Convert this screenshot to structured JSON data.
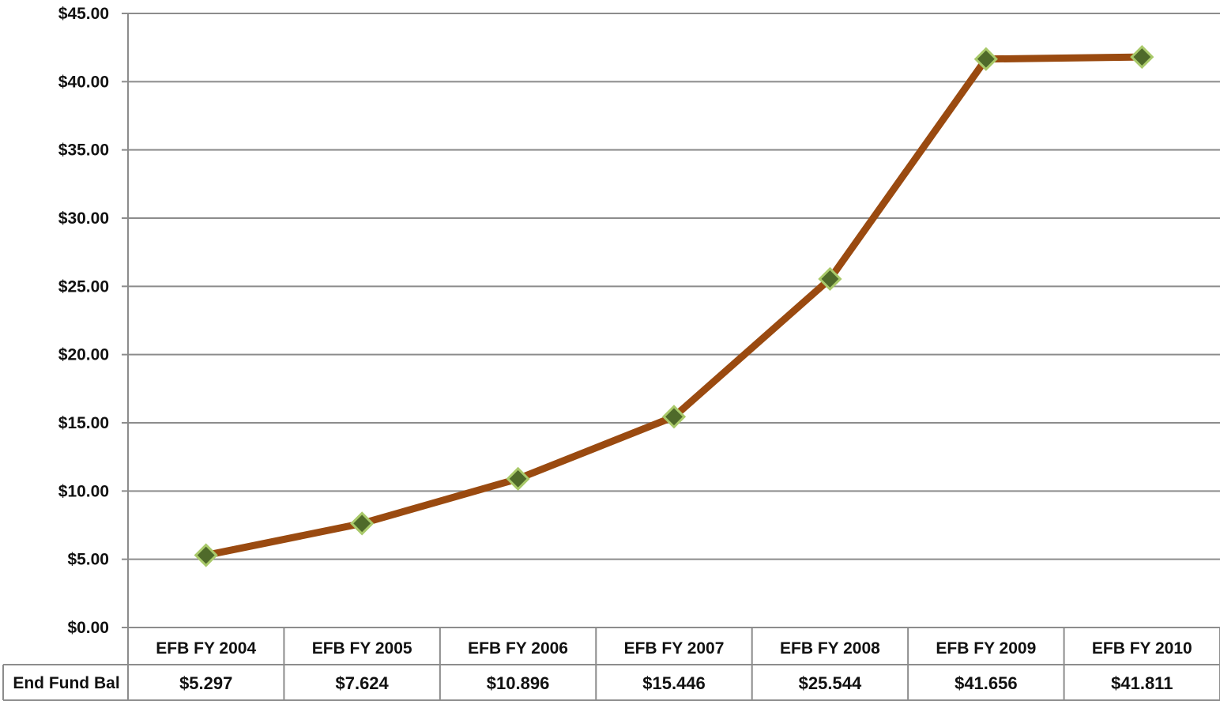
{
  "chart_data": {
    "type": "line",
    "title": "",
    "xlabel": "",
    "ylabel": "",
    "ylim": [
      0,
      45
    ],
    "y_ticks": [
      0,
      5,
      10,
      15,
      20,
      25,
      30,
      35,
      40,
      45
    ],
    "y_tick_labels": [
      "$0.00",
      "$5.00",
      "$10.00",
      "$15.00",
      "$20.00",
      "$25.00",
      "$30.00",
      "$35.00",
      "$40.00",
      "$45.00"
    ],
    "categories": [
      "EFB FY 2004",
      "EFB FY 2005",
      "EFB FY 2006",
      "EFB FY 2007",
      "EFB FY 2008",
      "EFB FY 2009",
      "EFB FY 2010"
    ],
    "grid": true,
    "series": [
      {
        "name": "End Fund Bal",
        "values": [
          5.297,
          7.624,
          10.896,
          15.446,
          25.544,
          41.656,
          41.811
        ],
        "value_labels": [
          "$5.297",
          "$7.624",
          "$10.896",
          "$15.446",
          "$25.544",
          "$41.656",
          "$41.811"
        ],
        "line_color": "#9a4a10",
        "marker": "diamond",
        "marker_fill": "#4f6a2a",
        "marker_stroke": "#a9c96a"
      }
    ],
    "data_table": true
  }
}
